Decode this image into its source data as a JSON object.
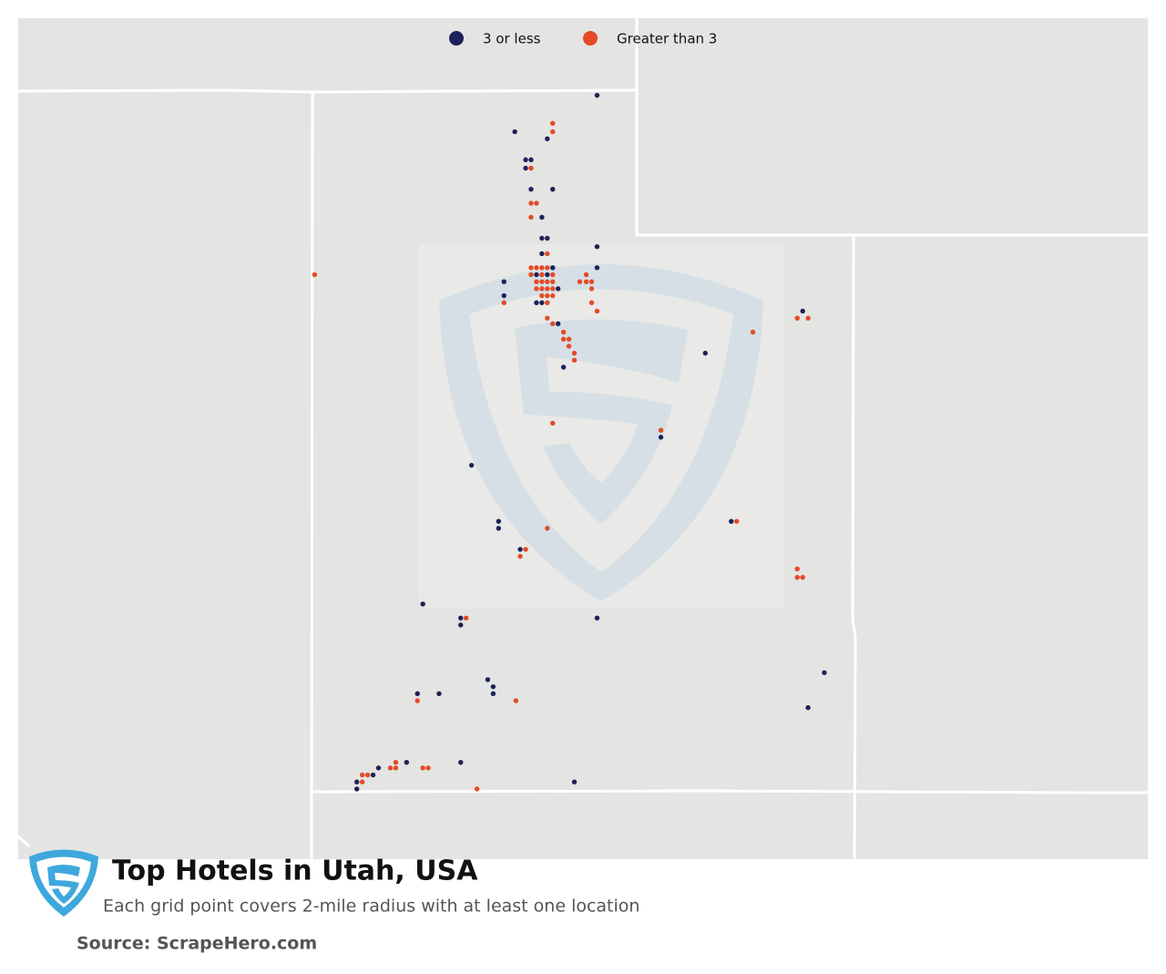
{
  "chart_data": {
    "type": "map",
    "title": "Top Hotels in Utah, USA",
    "subtitle": "Each grid point covers 2-mile radius with at least one location",
    "source": "Source: ScrapeHero.com",
    "xlim": [
      -114.05,
      -109.05
    ],
    "ylim": [
      37,
      42
    ],
    "series": [
      {
        "name": "3 or less",
        "color": "#1b2259",
        "x": [
          -111.42,
          -112.18,
          -111.88,
          -112.08,
          -112.03,
          -112.08,
          -112.03,
          -111.83,
          -111.93,
          -111.93,
          -111.88,
          -111.93,
          -111.42,
          -111.42,
          -111.83,
          -111.98,
          -111.88,
          -111.78,
          -111.98,
          -111.93,
          -112.28,
          -112.28,
          -111.78,
          -111.73,
          -109.52,
          -110.42,
          -110.83,
          -112.58,
          -112.33,
          -112.33,
          -110.18,
          -112.13,
          -113.03,
          -112.68,
          -112.68,
          -111.42,
          -109.32,
          -109.47,
          -112.43,
          -112.38,
          -112.38,
          -113.08,
          -112.88,
          -112.68,
          -113.18,
          -113.44,
          -113.49,
          -113.64,
          -111.63,
          -113.64
        ],
        "y": [
          41.97,
          41.71,
          41.66,
          41.51,
          41.51,
          41.45,
          41.3,
          41.3,
          41.1,
          40.95,
          40.95,
          40.84,
          40.89,
          40.74,
          40.74,
          40.69,
          40.69,
          40.59,
          40.49,
          40.49,
          40.64,
          40.54,
          40.34,
          40.03,
          40.43,
          40.13,
          39.53,
          39.33,
          38.93,
          38.88,
          38.93,
          38.73,
          38.34,
          38.24,
          38.19,
          38.24,
          37.85,
          37.6,
          37.8,
          37.75,
          37.7,
          37.7,
          37.7,
          37.21,
          37.21,
          37.17,
          37.12,
          37.07,
          37.07,
          37.02
        ]
      },
      {
        "name": "Greater than 3",
        "color": "#e44a26",
        "x": [
          -111.83,
          -111.83,
          -112.03,
          -112.03,
          -111.98,
          -112.03,
          -111.88,
          -112.03,
          -111.98,
          -111.93,
          -111.88,
          -112.03,
          -111.93,
          -111.83,
          -111.98,
          -111.93,
          -111.88,
          -111.83,
          -111.98,
          -111.93,
          -111.88,
          -111.83,
          -111.93,
          -111.88,
          -111.83,
          -111.88,
          -111.58,
          -111.52,
          -111.52,
          -111.47,
          -111.47,
          -111.47,
          -111.42,
          -112.28,
          -114.03,
          -111.88,
          -111.83,
          -111.73,
          -111.73,
          -111.68,
          -111.68,
          -111.63,
          -111.63,
          -109.57,
          -109.47,
          -109.98,
          -111.83,
          -110.83,
          -111.88,
          -110.13,
          -112.08,
          -112.13,
          -109.57,
          -109.57,
          -109.52,
          -112.63,
          -113.08,
          -112.17,
          -113.28,
          -113.33,
          -113.28,
          -113.03,
          -112.98,
          -113.59,
          -113.54,
          -113.59,
          -112.53
        ],
        "y": [
          41.77,
          41.71,
          41.45,
          41.2,
          41.2,
          41.1,
          40.84,
          40.74,
          40.74,
          40.74,
          40.74,
          40.69,
          40.69,
          40.69,
          40.64,
          40.64,
          40.64,
          40.64,
          40.59,
          40.59,
          40.59,
          40.59,
          40.54,
          40.54,
          40.54,
          40.49,
          40.64,
          40.69,
          40.64,
          40.64,
          40.59,
          40.49,
          40.43,
          40.49,
          40.69,
          40.38,
          40.34,
          40.28,
          40.23,
          40.23,
          40.18,
          40.13,
          40.08,
          40.38,
          40.38,
          40.28,
          39.63,
          39.58,
          38.88,
          38.93,
          38.73,
          38.68,
          38.59,
          38.53,
          38.53,
          38.24,
          37.65,
          37.65,
          37.21,
          37.17,
          37.17,
          37.17,
          37.17,
          37.12,
          37.12,
          37.07,
          37.02
        ]
      }
    ]
  }
}
